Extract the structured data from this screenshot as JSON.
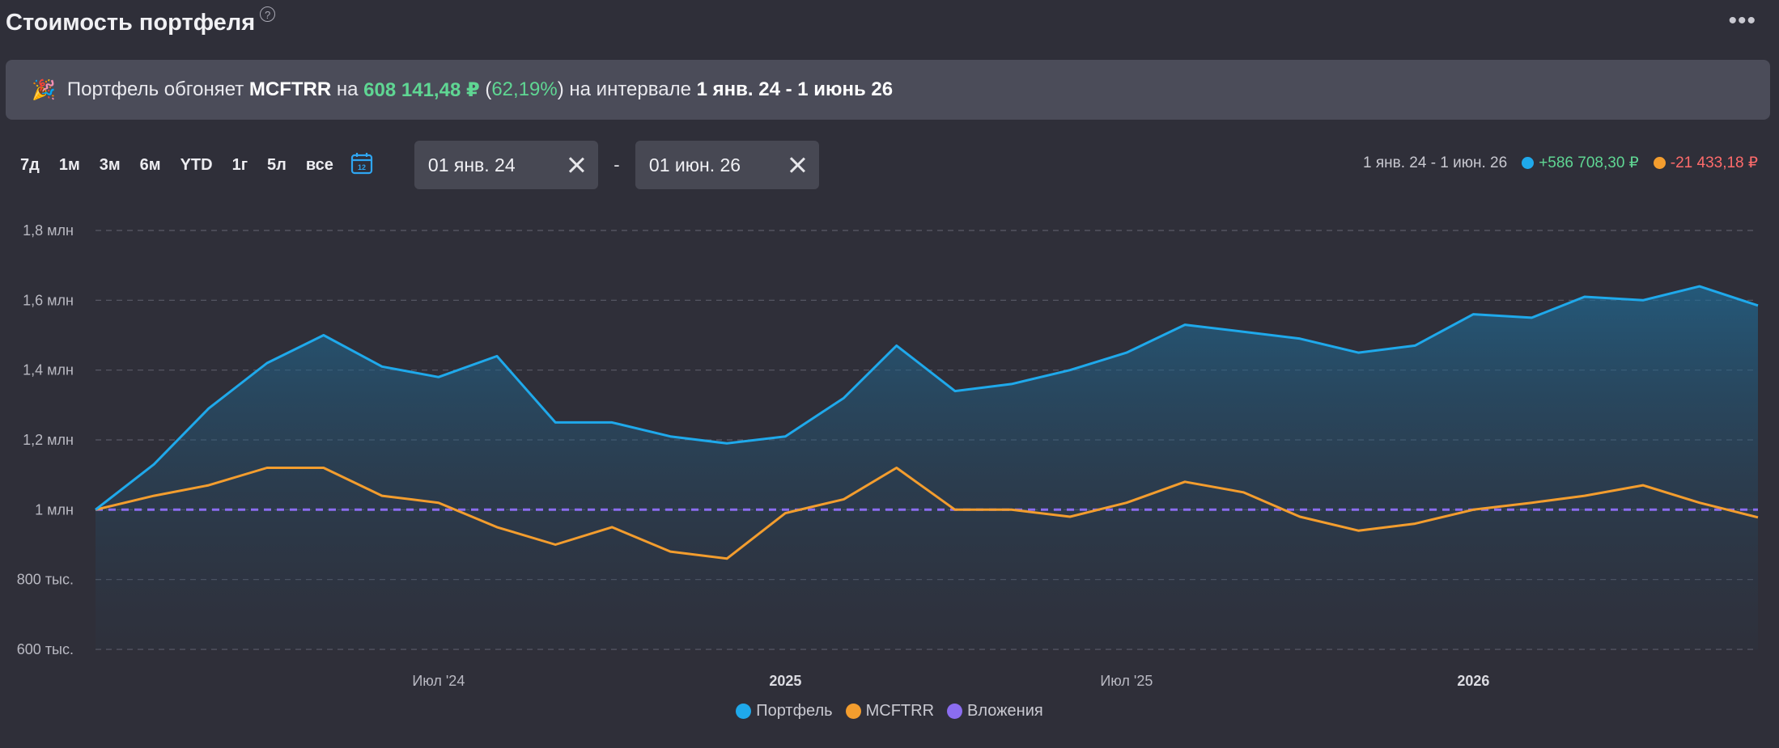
{
  "header": {
    "title": "Стоимость портфеля",
    "help": "?",
    "more": "•••"
  },
  "banner": {
    "icon": "🎉",
    "text1": "Портфель обгоняет",
    "benchmark": "MCFTRR",
    "text2": "на",
    "amount": "608 141,48 ₽",
    "percent_open": "(",
    "percent": "62,19%",
    "percent_close": ")",
    "text3": "на интервале",
    "interval": "1 янв. 24 - 1 июнь 26"
  },
  "periods": [
    "7д",
    "1м",
    "3м",
    "6м",
    "YTD",
    "1г",
    "5л",
    "все"
  ],
  "date_from": "01 янв. 24",
  "date_to": "01 июн. 26",
  "date_sep": "-",
  "summary": {
    "range": "1 янв. 24 - 1 июн. 26",
    "portfolio_change": "+586 708,30 ₽",
    "benchmark_change": "-21 433,18 ₽"
  },
  "colors": {
    "portfolio": "#1fa9eb",
    "benchmark": "#f39d2e",
    "investments": "#8b6df0"
  },
  "chart_data": {
    "type": "line",
    "title": "",
    "x_range": [
      "2024-01-01",
      "2026-06-01"
    ],
    "ylim": [
      600000,
      1800000
    ],
    "y_ticks": [
      600000,
      800000,
      1000000,
      1200000,
      1400000,
      1600000,
      1800000
    ],
    "y_tick_labels": [
      "600 тыс.",
      "800 тыс.",
      "1 млн",
      "1,2 млн",
      "1,4 млн",
      "1,6 млн",
      "1,8 млн"
    ],
    "x_ticks": [
      {
        "date": "2024-07-01",
        "label": "Июл '24",
        "bold": false
      },
      {
        "date": "2025-01-01",
        "label": "2025",
        "bold": true
      },
      {
        "date": "2025-07-01",
        "label": "Июл '25",
        "bold": false
      },
      {
        "date": "2026-01-01",
        "label": "2026",
        "bold": true
      }
    ],
    "grid": true,
    "legend_position": "bottom-center",
    "series": [
      {
        "name": "Портфель",
        "dates": [
          "2024-01-01",
          "2024-02-01",
          "2024-03-01",
          "2024-04-01",
          "2024-05-01",
          "2024-06-01",
          "2024-07-01",
          "2024-08-01",
          "2024-09-01",
          "2024-10-01",
          "2024-11-01",
          "2024-12-01",
          "2025-01-01",
          "2025-02-01",
          "2025-03-01",
          "2025-04-01",
          "2025-05-01",
          "2025-06-01",
          "2025-07-01",
          "2025-08-01",
          "2025-09-01",
          "2025-10-01",
          "2025-11-01",
          "2025-12-01",
          "2026-01-01",
          "2026-02-01",
          "2026-03-01",
          "2026-04-01",
          "2026-05-01",
          "2026-06-01"
        ],
        "values": [
          1000000,
          1130000,
          1290000,
          1420000,
          1500000,
          1410000,
          1380000,
          1440000,
          1250000,
          1250000,
          1210000,
          1190000,
          1210000,
          1320000,
          1470000,
          1340000,
          1360000,
          1400000,
          1450000,
          1530000,
          1510000,
          1490000,
          1450000,
          1470000,
          1560000,
          1550000,
          1610000,
          1600000,
          1640000,
          1585000
        ]
      },
      {
        "name": "MCFTRR",
        "dates": [
          "2024-01-01",
          "2024-02-01",
          "2024-03-01",
          "2024-04-01",
          "2024-05-01",
          "2024-06-01",
          "2024-07-01",
          "2024-08-01",
          "2024-09-01",
          "2024-10-01",
          "2024-11-01",
          "2024-12-01",
          "2025-01-01",
          "2025-02-01",
          "2025-03-01",
          "2025-04-01",
          "2025-05-01",
          "2025-06-01",
          "2025-07-01",
          "2025-08-01",
          "2025-09-01",
          "2025-10-01",
          "2025-11-01",
          "2025-12-01",
          "2026-01-01",
          "2026-02-01",
          "2026-03-01",
          "2026-04-01",
          "2026-05-01",
          "2026-06-01"
        ],
        "values": [
          1000000,
          1040000,
          1070000,
          1120000,
          1120000,
          1040000,
          1020000,
          950000,
          900000,
          950000,
          880000,
          860000,
          990000,
          1030000,
          1120000,
          1000000,
          1000000,
          980000,
          1020000,
          1080000,
          1050000,
          980000,
          940000,
          960000,
          1000000,
          1020000,
          1040000,
          1070000,
          1020000,
          978000
        ]
      },
      {
        "name": "Вложения",
        "dates": [
          "2024-01-01",
          "2026-06-01"
        ],
        "values": [
          1000000,
          1000000
        ]
      }
    ]
  }
}
